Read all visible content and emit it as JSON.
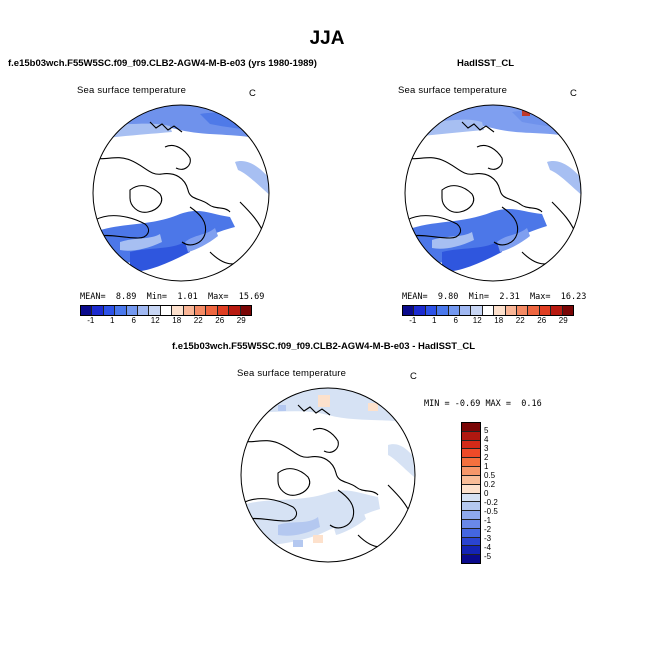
{
  "season": "JJA",
  "panels": {
    "model": {
      "title": "f.e15b03wch.F55W5SC.f09_f09.CLB2-AGW4-M-B-e03 (yrs 1980-1989)",
      "variable": "Sea surface temperature",
      "unit": "C",
      "mean_label": "MEAN=",
      "mean": "8.89",
      "min_label": "Min=",
      "min": "1.01",
      "max_label": "Max=",
      "max": "15.69"
    },
    "obs": {
      "title": "HadISST_CL",
      "variable": "Sea surface temperature",
      "unit": "C",
      "mean_label": "MEAN=",
      "mean": "9.80",
      "min_label": "Min=",
      "min": "2.31",
      "max_label": "Max=",
      "max": "16.23"
    },
    "diff": {
      "title": "f.e15b03wch.F55W5SC.f09_f09.CLB2-AGW4-M-B-e03 - HadISST_CL",
      "variable": "Sea surface temperature",
      "unit": "C",
      "min_label": "MIN =",
      "min": "-0.69",
      "max_label": "MAX =",
      "max": "0.16"
    }
  },
  "abs_colorbar": {
    "tick_labels": [
      "-1",
      "1",
      "6",
      "12",
      "18",
      "22",
      "26",
      "29"
    ],
    "colors": [
      "#0a0a8c",
      "#1c2bd0",
      "#2d52e8",
      "#4a78ec",
      "#7398f0",
      "#a0b8f2",
      "#c8d6f4",
      "#ffffff",
      "#fde0cc",
      "#f9b596",
      "#f48a64",
      "#ee6640",
      "#e03e22",
      "#b81a10",
      "#7a0606"
    ]
  },
  "diff_colorbar": {
    "tick_labels": [
      "5",
      "4",
      "3",
      "2",
      "1",
      "0.5",
      "0.2",
      "0",
      "-0.2",
      "-0.5",
      "-1",
      "-2",
      "-3",
      "-4",
      "-5"
    ],
    "colors": [
      "#7a0606",
      "#b01810",
      "#d32a18",
      "#ee4a28",
      "#f4703e",
      "#f6976a",
      "#f9bd98",
      "#fde1cc",
      "#d6e2f4",
      "#b4c8f0",
      "#8ea8ec",
      "#6a88e8",
      "#4466e0",
      "#2a44d0",
      "#1424b4",
      "#0a0a8c"
    ]
  }
}
